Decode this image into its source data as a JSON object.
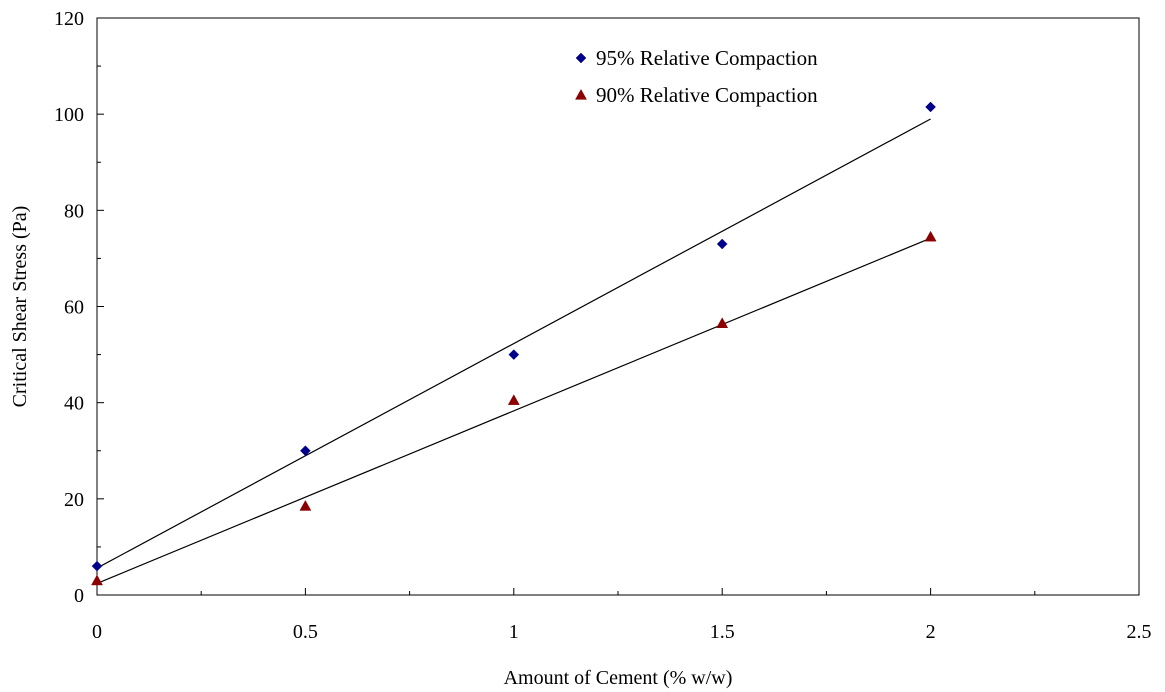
{
  "chart_data": {
    "type": "scatter",
    "title": "",
    "xlabel": "Amount of Cement (% w/w)",
    "ylabel": "Critical Shear Stress (Pa)",
    "xlim": [
      0,
      2.5
    ],
    "ylim": [
      0,
      120
    ],
    "x_ticks": [
      "0",
      "0.5",
      "1",
      "1.5",
      "2",
      "2.5"
    ],
    "y_ticks": [
      "0",
      "20",
      "40",
      "60",
      "80",
      "100",
      "120"
    ],
    "grid": false,
    "legend_position": "top-center",
    "series": [
      {
        "name": "95% Relative Compaction",
        "marker": "diamond",
        "color": "#00008B",
        "x": [
          0,
          0.5,
          1,
          1.5,
          2
        ],
        "y": [
          6,
          30,
          50,
          73,
          101.5
        ],
        "trendline": {
          "from": [
            0,
            5.6
          ],
          "to": [
            2,
            99
          ]
        }
      },
      {
        "name": "90% Relative Compaction",
        "marker": "triangle",
        "color": "#8B0000",
        "x": [
          0,
          0.5,
          1,
          1.5,
          2
        ],
        "y": [
          3,
          18.5,
          40.5,
          56.5,
          74.5
        ],
        "trendline": {
          "from": [
            0,
            2.4
          ],
          "to": [
            2,
            74.2
          ]
        }
      }
    ]
  }
}
